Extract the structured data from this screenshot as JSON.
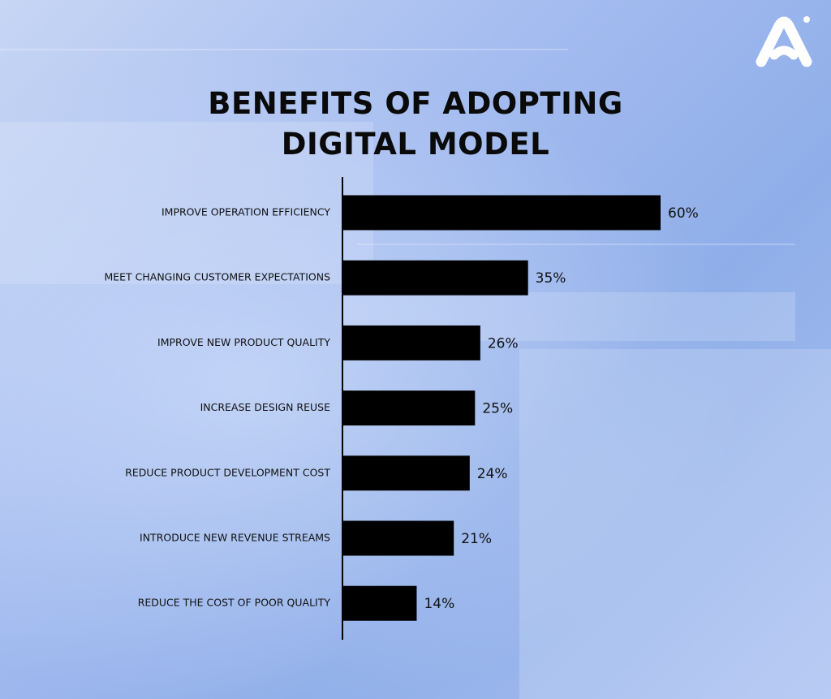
{
  "brand": {
    "logo_icon": "brand-logo-icon",
    "logo_color": "#ffffff"
  },
  "colors": {
    "bar": "#000000",
    "text": "#111111",
    "background": "#a6bdf0"
  },
  "chart_data": {
    "type": "bar",
    "orientation": "horizontal",
    "title_lines": [
      "BENEFITS OF ADOPTING",
      "DIGITAL MODEL"
    ],
    "categories": [
      "IMPROVE OPERATION EFFICIENCY",
      "MEET CHANGING CUSTOMER EXPECTATIONS",
      "IMPROVE NEW PRODUCT QUALITY",
      "INCREASE DESIGN REUSE",
      "REDUCE PRODUCT DEVELOPMENT COST",
      "INTRODUCE NEW REVENUE STREAMS",
      "REDUCE THE COST OF POOR QUALITY"
    ],
    "values": [
      60,
      35,
      26,
      25,
      24,
      21,
      14
    ],
    "value_labels": [
      "60%",
      "35%",
      "26%",
      "25%",
      "24%",
      "21%",
      "14%"
    ],
    "value_unit": "%",
    "xlim": [
      0,
      60
    ],
    "grid": false,
    "legend": "none"
  }
}
